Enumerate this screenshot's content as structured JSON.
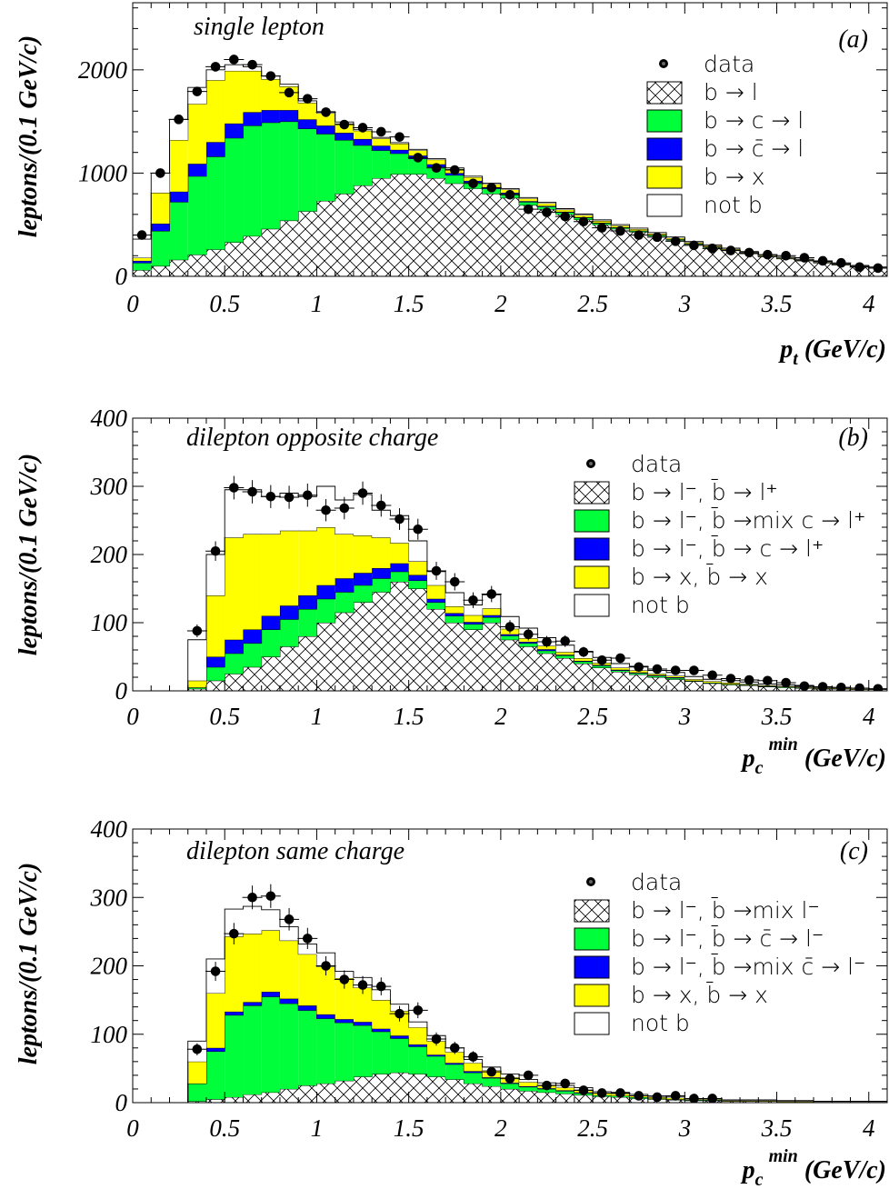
{
  "chart_data": [
    {
      "type": "bar",
      "id": "a",
      "panel_label": "(a)",
      "title": "single lepton",
      "ylabel": "leptons/(0.1 GeV/c)",
      "xlabel_main": "p",
      "xlabel_sub": "t",
      "xlabel_sup": "",
      "xlabel_unit": " (GeV/c)",
      "xlim": [
        0,
        4.1
      ],
      "ylim": [
        0,
        2650
      ],
      "x_ticks": [
        "0",
        "0.5",
        "1",
        "1.5",
        "2",
        "2.5",
        "3",
        "3.5",
        "4"
      ],
      "x_tick_values": [
        0,
        0.5,
        1,
        1.5,
        2,
        2.5,
        3,
        3.5,
        4
      ],
      "y_ticks": [
        "0",
        "1000",
        "2000"
      ],
      "y_tick_values": [
        0,
        1000,
        2000
      ],
      "bin_edges_start": 0,
      "bin_width": 0.1,
      "series": [
        {
          "name": "b → l",
          "fill": "hatch",
          "values": [
            60,
            100,
            160,
            210,
            260,
            330,
            390,
            460,
            540,
            630,
            730,
            800,
            880,
            950,
            990,
            990,
            950,
            900,
            850,
            800,
            760,
            690,
            650,
            600,
            550,
            500,
            460,
            430,
            390,
            350,
            310,
            280,
            250,
            220,
            190,
            170,
            150,
            130,
            110,
            95,
            80
          ]
        },
        {
          "name": "b → c → l",
          "fill": "#00ff3a",
          "values": [
            70,
            340,
            560,
            760,
            900,
            1010,
            1070,
            1030,
            960,
            800,
            650,
            520,
            390,
            270,
            200,
            150,
            110,
            80,
            60,
            50,
            40,
            30,
            25,
            20,
            18,
            15,
            12,
            10,
            10,
            8,
            7,
            6,
            5,
            4,
            4,
            3,
            3,
            2,
            2,
            2,
            2
          ]
        },
        {
          "name": "b → c̄ → l",
          "fill": "#0000ff",
          "values": [
            20,
            70,
            100,
            120,
            140,
            140,
            130,
            120,
            110,
            90,
            80,
            70,
            60,
            45,
            35,
            30,
            25,
            20,
            15,
            12,
            10,
            8,
            7,
            6,
            5,
            4,
            3,
            3,
            2,
            2,
            2,
            2,
            2,
            1,
            1,
            1,
            1,
            1,
            1,
            1,
            1
          ]
        },
        {
          "name": "b → x",
          "fill": "#ffff00",
          "values": [
            30,
            300,
            500,
            580,
            600,
            510,
            400,
            300,
            230,
            160,
            120,
            90,
            80,
            70,
            60,
            50,
            45,
            40,
            35,
            30,
            30,
            25,
            25,
            20,
            20,
            18,
            16,
            14,
            12,
            11,
            10,
            9,
            8,
            7,
            6,
            5,
            5,
            4,
            4,
            3,
            3
          ]
        },
        {
          "name": "not b",
          "fill": "#ffffff",
          "values": [
            180,
            190,
            200,
            160,
            100,
            60,
            40,
            30,
            20,
            20,
            15,
            15,
            10,
            10,
            10,
            10,
            10,
            10,
            10,
            10,
            10,
            10,
            10,
            10,
            10,
            10,
            10,
            10,
            10,
            10,
            8,
            8,
            8,
            8,
            8,
            6,
            6,
            6,
            6,
            5,
            5
          ]
        }
      ],
      "data_points": {
        "name": "data",
        "x": [
          0.05,
          0.15,
          0.25,
          0.35,
          0.45,
          0.55,
          0.65,
          0.75,
          0.85,
          0.95,
          1.05,
          1.15,
          1.25,
          1.35,
          1.45,
          1.55,
          1.65,
          1.75,
          1.85,
          1.95,
          2.05,
          2.15,
          2.25,
          2.35,
          2.45,
          2.55,
          2.65,
          2.75,
          2.85,
          2.95,
          3.05,
          3.15,
          3.25,
          3.35,
          3.45,
          3.55,
          3.65,
          3.75,
          3.85,
          3.95,
          4.05
        ],
        "y": [
          400,
          1000,
          1520,
          1790,
          2030,
          2100,
          2050,
          1940,
          1780,
          1720,
          1590,
          1470,
          1440,
          1400,
          1350,
          1150,
          1050,
          1030,
          900,
          860,
          790,
          650,
          620,
          580,
          530,
          470,
          440,
          400,
          380,
          340,
          300,
          270,
          250,
          230,
          210,
          200,
          180,
          150,
          130,
          90,
          80
        ]
      },
      "legend_position": "top-right",
      "legend": [
        {
          "label": "data",
          "marker": "dot"
        },
        {
          "label": "b → l",
          "marker": "hatch"
        },
        {
          "label": "b → c → l",
          "marker": "#00ff3a"
        },
        {
          "label": "b → c̄ → l",
          "marker": "#0000ff"
        },
        {
          "label": "b → x",
          "marker": "#ffff00"
        },
        {
          "label": "not b",
          "marker": "#ffffff"
        }
      ]
    },
    {
      "type": "bar",
      "id": "b",
      "panel_label": "(b)",
      "title": "dilepton opposite charge",
      "ylabel": "leptons/(0.1 GeV/c)",
      "xlabel_main": "p",
      "xlabel_sub": "c",
      "xlabel_sup": "min",
      "xlabel_unit": " (GeV/c)",
      "xlim": [
        0,
        4.1
      ],
      "ylim": [
        0,
        400
      ],
      "x_ticks": [
        "0",
        "0.5",
        "1",
        "1.5",
        "2",
        "2.5",
        "3",
        "3.5",
        "4"
      ],
      "x_tick_values": [
        0,
        0.5,
        1,
        1.5,
        2,
        2.5,
        3,
        3.5,
        4
      ],
      "y_ticks": [
        "0",
        "100",
        "200",
        "300",
        "400"
      ],
      "y_tick_values": [
        0,
        100,
        200,
        300,
        400
      ],
      "bin_edges_start": 0,
      "bin_width": 0.1,
      "series": [
        {
          "name": "b → l⁻, b̄ → l⁺",
          "fill": "hatch",
          "values": [
            0,
            0,
            0,
            3,
            15,
            25,
            35,
            50,
            65,
            80,
            100,
            115,
            130,
            145,
            160,
            150,
            120,
            100,
            90,
            100,
            75,
            65,
            55,
            48,
            40,
            34,
            28,
            24,
            20,
            17,
            14,
            11,
            9,
            8,
            6,
            5,
            4,
            3,
            3,
            2,
            2
          ]
        },
        {
          "name": "b → l⁻, b̄ →(mix) c → l⁺",
          "fill": "#00ff3a",
          "values": [
            0,
            0,
            0,
            2,
            20,
            30,
            35,
            40,
            40,
            40,
            35,
            30,
            25,
            20,
            15,
            12,
            10,
            10,
            8,
            8,
            6,
            5,
            4,
            4,
            3,
            3,
            2,
            2,
            2,
            2,
            1,
            1,
            1,
            1,
            1,
            1,
            1,
            0,
            0,
            0,
            0
          ]
        },
        {
          "name": "b → l⁻, b̄ → c → l⁺",
          "fill": "#0000ff",
          "values": [
            0,
            0,
            0,
            0,
            15,
            20,
            20,
            20,
            20,
            20,
            20,
            20,
            18,
            15,
            12,
            8,
            5,
            4,
            3,
            3,
            2,
            2,
            2,
            1,
            1,
            1,
            1,
            1,
            1,
            1,
            0,
            0,
            0,
            0,
            0,
            0,
            0,
            0,
            0,
            0,
            0
          ]
        },
        {
          "name": "b → x, b̄ → x",
          "fill": "#ffff00",
          "values": [
            0,
            0,
            0,
            10,
            90,
            150,
            140,
            120,
            110,
            95,
            85,
            65,
            55,
            45,
            30,
            20,
            20,
            10,
            10,
            10,
            8,
            5,
            5,
            4,
            4,
            3,
            3,
            3,
            2,
            2,
            2,
            2,
            2,
            1,
            1,
            1,
            1,
            1,
            1,
            1,
            0
          ]
        },
        {
          "name": "not b",
          "fill": "#ffffff",
          "values": [
            0,
            0,
            0,
            60,
            60,
            70,
            65,
            55,
            55,
            50,
            60,
            50,
            60,
            40,
            40,
            30,
            20,
            20,
            15,
            20,
            18,
            15,
            12,
            10,
            10,
            8,
            6,
            6,
            5,
            5,
            4,
            3,
            3,
            3,
            2,
            2,
            2,
            1,
            1,
            1,
            1
          ]
        }
      ],
      "data_points": {
        "name": "data",
        "x": [
          0.35,
          0.45,
          0.55,
          0.65,
          0.75,
          0.85,
          0.95,
          1.05,
          1.15,
          1.25,
          1.35,
          1.45,
          1.55,
          1.65,
          1.75,
          1.85,
          1.95,
          2.05,
          2.15,
          2.25,
          2.35,
          2.45,
          2.55,
          2.65,
          2.75,
          2.85,
          2.95,
          3.05,
          3.15,
          3.25,
          3.35,
          3.45,
          3.55,
          3.65,
          3.75,
          3.85,
          3.95,
          4.05
        ],
        "y": [
          88,
          205,
          298,
          292,
          285,
          284,
          287,
          265,
          268,
          290,
          272,
          252,
          237,
          176,
          160,
          133,
          142,
          94,
          83,
          72,
          73,
          57,
          45,
          48,
          35,
          32,
          30,
          30,
          23,
          18,
          16,
          15,
          12,
          7,
          6,
          5,
          4,
          3
        ]
      },
      "legend_position": "top-right",
      "legend": [
        {
          "label": "data",
          "marker": "dot"
        },
        {
          "label": "b → l⁻, b̄ → l⁺",
          "marker": "hatch"
        },
        {
          "label": "b → l⁻, b̄ →mix c → l⁺",
          "marker": "#00ff3a"
        },
        {
          "label": "b → l⁻, b̄ → c → l⁺",
          "marker": "#0000ff"
        },
        {
          "label": "b → x, b̄ → x",
          "marker": "#ffff00"
        },
        {
          "label": "not b",
          "marker": "#ffffff"
        }
      ]
    },
    {
      "type": "bar",
      "id": "c",
      "panel_label": "(c)",
      "title": "dilepton same charge",
      "ylabel": "leptons/(0.1 GeV/c)",
      "xlabel_main": "p",
      "xlabel_sub": "c",
      "xlabel_sup": "min",
      "xlabel_unit": " (GeV/c)",
      "xlim": [
        0,
        4.1
      ],
      "ylim": [
        0,
        400
      ],
      "x_ticks": [
        "0",
        "0.5",
        "1",
        "1.5",
        "2",
        "2.5",
        "3",
        "3.5",
        "4"
      ],
      "x_tick_values": [
        0,
        0.5,
        1,
        1.5,
        2,
        2.5,
        3,
        3.5,
        4
      ],
      "y_ticks": [
        "0",
        "100",
        "200",
        "300",
        "400"
      ],
      "y_tick_values": [
        0,
        100,
        200,
        300,
        400
      ],
      "bin_edges_start": 0,
      "bin_width": 0.1,
      "series": [
        {
          "name": "b → l⁻, b̄ →(mix) l⁻",
          "fill": "hatch",
          "values": [
            0,
            0,
            0,
            2,
            5,
            8,
            12,
            15,
            20,
            25,
            28,
            32,
            38,
            42,
            44,
            42,
            38,
            34,
            28,
            24,
            20,
            17,
            15,
            13,
            11,
            9,
            8,
            6,
            5,
            4,
            3,
            3,
            2,
            2,
            2,
            1,
            1,
            1,
            1,
            1,
            1
          ]
        },
        {
          "name": "b → l⁻, b̄ → c̄ → l⁻",
          "fill": "#00ff3a",
          "values": [
            0,
            0,
            0,
            26,
            70,
            120,
            130,
            140,
            125,
            110,
            95,
            85,
            75,
            62,
            50,
            40,
            30,
            22,
            16,
            12,
            8,
            6,
            5,
            4,
            3,
            2,
            2,
            2,
            1,
            1,
            1,
            1,
            0,
            0,
            0,
            0,
            0,
            0,
            0,
            0,
            0
          ]
        },
        {
          "name": "b → l⁻, b̄ →(mix) c̄ → l⁻",
          "fill": "#0000ff",
          "values": [
            0,
            0,
            0,
            0,
            5,
            5,
            5,
            7,
            7,
            7,
            6,
            5,
            5,
            4,
            4,
            3,
            2,
            2,
            2,
            1,
            1,
            1,
            1,
            1,
            1,
            0,
            0,
            0,
            0,
            0,
            0,
            0,
            0,
            0,
            0,
            0,
            0,
            0,
            0,
            0,
            0
          ]
        },
        {
          "name": "b → x, b̄ → x",
          "fill": "#ffff00",
          "values": [
            0,
            0,
            0,
            32,
            80,
            110,
            100,
            90,
            85,
            75,
            70,
            60,
            50,
            42,
            36,
            25,
            20,
            16,
            12,
            10,
            8,
            6,
            5,
            4,
            4,
            3,
            3,
            2,
            2,
            2,
            1,
            1,
            1,
            1,
            1,
            1,
            1,
            0,
            0,
            0,
            0
          ]
        },
        {
          "name": "not b",
          "fill": "#ffffff",
          "values": [
            0,
            0,
            0,
            30,
            50,
            40,
            40,
            30,
            20,
            15,
            20,
            10,
            15,
            15,
            10,
            8,
            8,
            6,
            5,
            5,
            5,
            4,
            3,
            3,
            3,
            2,
            2,
            2,
            2,
            2,
            1,
            1,
            1,
            1,
            1,
            1,
            1,
            1,
            1,
            1,
            1
          ]
        }
      ],
      "data_points": {
        "name": "data",
        "x": [
          0.35,
          0.45,
          0.55,
          0.65,
          0.75,
          0.85,
          0.95,
          1.05,
          1.15,
          1.25,
          1.35,
          1.45,
          1.55,
          1.65,
          1.75,
          1.85,
          1.95,
          2.05,
          2.15,
          2.25,
          2.35,
          2.45,
          2.55,
          2.65,
          2.75,
          2.85,
          2.95,
          3.05,
          3.15
        ],
        "y": [
          78,
          192,
          247,
          300,
          302,
          268,
          240,
          200,
          180,
          172,
          170,
          130,
          135,
          93,
          80,
          67,
          45,
          35,
          40,
          25,
          28,
          18,
          14,
          14,
          10,
          8,
          10,
          6,
          6
        ]
      },
      "legend_position": "top-right",
      "legend": [
        {
          "label": "data",
          "marker": "dot"
        },
        {
          "label": "b → l⁻, b̄ →mix l⁻",
          "marker": "hatch"
        },
        {
          "label": "b → l⁻, b̄ → c̄ → l⁻",
          "marker": "#00ff3a"
        },
        {
          "label": "b → l⁻, b̄ →mix c̄ → l⁻",
          "marker": "#0000ff"
        },
        {
          "label": "b → x, b̄ → x",
          "marker": "#ffff00"
        },
        {
          "label": "not b",
          "marker": "#ffffff"
        }
      ]
    }
  ]
}
